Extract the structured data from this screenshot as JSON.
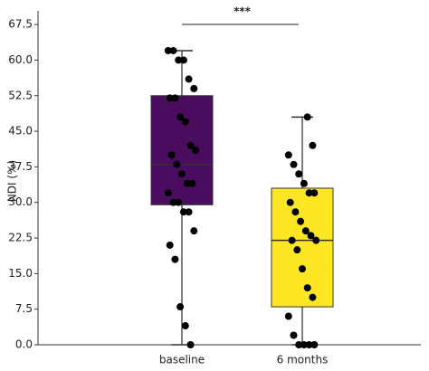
{
  "chart_data": {
    "type": "box",
    "ylabel": "NDI (%)",
    "ylim": [
      0,
      70
    ],
    "yticks": [
      {
        "value": 0,
        "label": "0.0"
      },
      7.5,
      {
        "value": 15,
        "label": "15.0"
      },
      22.5,
      {
        "value": 30,
        "label": "30.0"
      },
      37.5,
      {
        "value": 45,
        "label": "45.0"
      },
      52.5,
      {
        "value": 60,
        "label": "60.0"
      },
      67.5
    ],
    "categories": [
      "baseline",
      "6 months"
    ],
    "boxes": [
      {
        "min": 0,
        "q1": 29.5,
        "median": 38,
        "q3": 52.5,
        "max": 62,
        "color": "#4a0c5e",
        "points": [
          62,
          62,
          60,
          60,
          56,
          54,
          52,
          52,
          48,
          47,
          42,
          41,
          40,
          38,
          36,
          34,
          34,
          32,
          30,
          30,
          28,
          28,
          24,
          21,
          18,
          8,
          4,
          0
        ]
      },
      {
        "min": 0,
        "q1": 8,
        "median": 22,
        "q3": 33,
        "max": 48,
        "color": "#fde725",
        "points": [
          48,
          42,
          40,
          38,
          36,
          34,
          32,
          32,
          30,
          28,
          26,
          24,
          23,
          22,
          22,
          20,
          16,
          12,
          10,
          6,
          2,
          0,
          0,
          0,
          0
        ]
      }
    ],
    "significance": "***"
  }
}
